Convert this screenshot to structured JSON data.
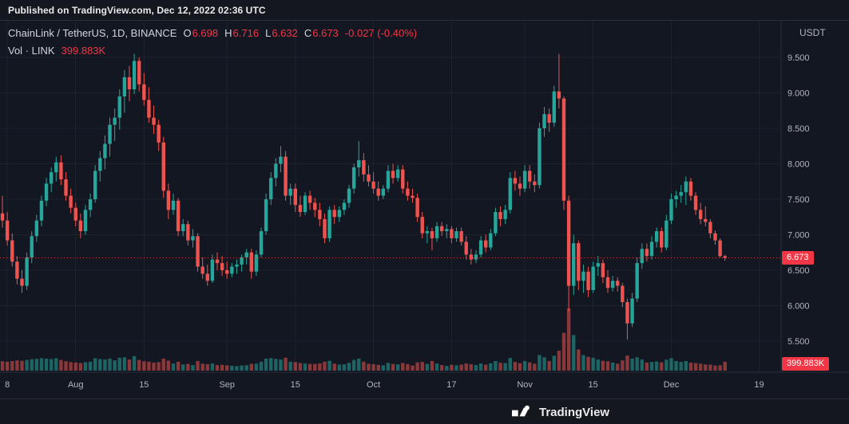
{
  "published": {
    "text": "Published on TradingView.com, Dec 12, 2022 02:36 UTC"
  },
  "legend": {
    "symbol": "ChainLink / TetherUS, 1D, BINANCE",
    "o_label": "O",
    "o_value": "6.698",
    "h_label": "H",
    "h_value": "6.716",
    "l_label": "L",
    "l_value": "6.632",
    "c_label": "C",
    "c_value": "6.673",
    "change": "-0.027 (-0.40%)",
    "vol_label": "Vol · LINK",
    "vol_value": "399.883K"
  },
  "price_axis": {
    "unit": "USDT",
    "last_price": "6.673",
    "volume_label": "399.883K"
  },
  "footer": {
    "brand": "TradingView"
  },
  "colors": {
    "bg": "#131722",
    "up": "#26a69a",
    "down": "#ef5350",
    "vol_up": "rgba(38,166,154,0.55)",
    "vol_down": "rgba(239,83,80,0.55)",
    "grid": "#1e222d",
    "border": "#2a2e39",
    "axis_text": "#b2b5be",
    "badge": "#f23645",
    "text": "#d1d4dc"
  },
  "chart_data": {
    "type": "candlestick+volume",
    "title": "ChainLink / TetherUS, 1D, BINANCE",
    "interval": "1D",
    "quote_unit": "USDT",
    "last": {
      "open": 6.698,
      "high": 6.716,
      "low": 6.632,
      "close": 6.673,
      "change": -0.027,
      "change_pct": -0.4,
      "volume": "399.883K"
    },
    "y_axis": {
      "ticks": [
        5.5,
        6.0,
        6.5,
        7.0,
        7.5,
        8.0,
        8.5,
        9.0,
        9.5
      ],
      "tick_labels": [
        "5.500",
        "6.000",
        "6.500",
        "7.000",
        "7.500",
        "8.000",
        "8.500",
        "9.000",
        "9.500"
      ]
    },
    "x_ticks": [
      {
        "i": 1,
        "label": "8"
      },
      {
        "i": 15,
        "label": "Aug"
      },
      {
        "i": 29,
        "label": "15"
      },
      {
        "i": 46,
        "label": "Sep"
      },
      {
        "i": 60,
        "label": "15"
      },
      {
        "i": 76,
        "label": "Oct"
      },
      {
        "i": 92,
        "label": "17"
      },
      {
        "i": 107,
        "label": "Nov"
      },
      {
        "i": 121,
        "label": "15"
      },
      {
        "i": 137,
        "label": "Dec"
      },
      {
        "i": 155,
        "label": "19"
      }
    ],
    "slots": 160,
    "candles": [
      [
        7.3,
        7.55,
        7.1,
        7.2,
        420
      ],
      [
        7.2,
        7.32,
        6.85,
        6.92,
        400
      ],
      [
        6.92,
        7.02,
        6.55,
        6.62,
        430
      ],
      [
        6.62,
        6.7,
        6.3,
        6.38,
        460
      ],
      [
        6.38,
        6.5,
        6.18,
        6.28,
        440
      ],
      [
        6.28,
        6.75,
        6.22,
        6.68,
        480
      ],
      [
        6.68,
        7.05,
        6.6,
        6.98,
        510
      ],
      [
        6.98,
        7.28,
        6.9,
        7.2,
        530
      ],
      [
        7.2,
        7.55,
        7.12,
        7.48,
        560
      ],
      [
        7.48,
        7.8,
        7.4,
        7.72,
        540
      ],
      [
        7.72,
        7.95,
        7.6,
        7.88,
        520
      ],
      [
        7.88,
        8.1,
        7.75,
        8.02,
        560
      ],
      [
        8.02,
        8.12,
        7.7,
        7.78,
        480
      ],
      [
        7.78,
        7.88,
        7.48,
        7.55,
        420
      ],
      [
        7.55,
        7.65,
        7.3,
        7.38,
        380
      ],
      [
        7.38,
        7.45,
        7.12,
        7.2,
        360
      ],
      [
        7.2,
        7.3,
        6.95,
        7.05,
        340
      ],
      [
        7.05,
        7.42,
        7.0,
        7.35,
        380
      ],
      [
        7.35,
        7.58,
        7.25,
        7.5,
        400
      ],
      [
        7.5,
        7.98,
        7.45,
        7.9,
        560
      ],
      [
        7.9,
        8.18,
        7.75,
        8.08,
        520
      ],
      [
        8.08,
        8.4,
        7.92,
        8.28,
        500
      ],
      [
        8.28,
        8.65,
        8.1,
        8.55,
        540
      ],
      [
        8.55,
        8.78,
        8.32,
        8.65,
        460
      ],
      [
        8.65,
        9.05,
        8.48,
        8.95,
        580
      ],
      [
        8.95,
        9.32,
        8.72,
        9.22,
        600
      ],
      [
        9.22,
        9.38,
        8.88,
        9.05,
        500
      ],
      [
        9.05,
        9.55,
        8.98,
        9.45,
        650
      ],
      [
        9.45,
        9.5,
        9.02,
        9.12,
        480
      ],
      [
        9.12,
        9.28,
        8.82,
        8.9,
        420
      ],
      [
        8.9,
        9.08,
        8.58,
        8.65,
        400
      ],
      [
        8.65,
        8.82,
        8.42,
        8.55,
        360
      ],
      [
        8.55,
        8.62,
        8.18,
        8.3,
        380
      ],
      [
        8.3,
        8.38,
        7.52,
        7.62,
        540
      ],
      [
        7.62,
        7.72,
        7.22,
        7.35,
        450
      ],
      [
        7.35,
        7.58,
        7.28,
        7.48,
        320
      ],
      [
        7.48,
        7.52,
        6.98,
        7.05,
        400
      ],
      [
        7.05,
        7.22,
        6.98,
        7.15,
        280
      ],
      [
        7.15,
        7.2,
        6.85,
        6.92,
        300
      ],
      [
        6.92,
        7.08,
        6.82,
        6.98,
        250
      ],
      [
        6.98,
        7.02,
        6.48,
        6.55,
        430
      ],
      [
        6.55,
        6.68,
        6.38,
        6.45,
        310
      ],
      [
        6.45,
        6.58,
        6.28,
        6.35,
        290
      ],
      [
        6.35,
        6.72,
        6.32,
        6.65,
        320
      ],
      [
        6.65,
        6.75,
        6.5,
        6.6,
        250
      ],
      [
        6.6,
        6.7,
        6.42,
        6.5,
        260
      ],
      [
        6.5,
        6.62,
        6.38,
        6.45,
        240
      ],
      [
        6.45,
        6.6,
        6.4,
        6.55,
        220
      ],
      [
        6.55,
        6.65,
        6.45,
        6.58,
        200
      ],
      [
        6.58,
        6.72,
        6.48,
        6.68,
        230
      ],
      [
        6.68,
        6.8,
        6.58,
        6.75,
        240
      ],
      [
        6.75,
        6.8,
        6.38,
        6.48,
        300
      ],
      [
        6.48,
        6.78,
        6.42,
        6.72,
        310
      ],
      [
        6.72,
        7.1,
        6.68,
        7.05,
        400
      ],
      [
        7.05,
        7.58,
        7.0,
        7.5,
        540
      ],
      [
        7.5,
        7.88,
        7.42,
        7.8,
        560
      ],
      [
        7.8,
        8.08,
        7.68,
        8.0,
        530
      ],
      [
        8.0,
        8.25,
        7.88,
        8.1,
        500
      ],
      [
        8.1,
        8.18,
        7.48,
        7.55,
        580
      ],
      [
        7.55,
        7.72,
        7.42,
        7.65,
        400
      ],
      [
        7.65,
        7.72,
        7.32,
        7.42,
        380
      ],
      [
        7.42,
        7.55,
        7.25,
        7.32,
        340
      ],
      [
        7.32,
        7.6,
        7.28,
        7.55,
        320
      ],
      [
        7.55,
        7.62,
        7.35,
        7.45,
        300
      ],
      [
        7.45,
        7.52,
        7.25,
        7.35,
        300
      ],
      [
        7.35,
        7.45,
        7.12,
        7.22,
        320
      ],
      [
        7.22,
        7.3,
        6.88,
        6.95,
        400
      ],
      [
        6.95,
        7.4,
        6.9,
        7.35,
        440
      ],
      [
        7.35,
        7.42,
        7.15,
        7.25,
        310
      ],
      [
        7.25,
        7.4,
        7.18,
        7.35,
        270
      ],
      [
        7.35,
        7.5,
        7.28,
        7.45,
        280
      ],
      [
        7.45,
        7.7,
        7.38,
        7.65,
        350
      ],
      [
        7.65,
        8.0,
        7.58,
        7.95,
        480
      ],
      [
        7.95,
        8.32,
        7.82,
        8.05,
        540
      ],
      [
        8.05,
        8.15,
        7.75,
        7.85,
        400
      ],
      [
        7.85,
        7.98,
        7.68,
        7.75,
        310
      ],
      [
        7.75,
        7.88,
        7.58,
        7.65,
        290
      ],
      [
        7.65,
        7.75,
        7.48,
        7.55,
        260
      ],
      [
        7.55,
        7.7,
        7.5,
        7.65,
        240
      ],
      [
        7.65,
        7.98,
        7.6,
        7.9,
        350
      ],
      [
        7.9,
        8.0,
        7.72,
        7.8,
        300
      ],
      [
        7.8,
        7.98,
        7.75,
        7.92,
        280
      ],
      [
        7.92,
        7.98,
        7.58,
        7.65,
        340
      ],
      [
        7.65,
        7.75,
        7.48,
        7.55,
        290
      ],
      [
        7.55,
        7.65,
        7.45,
        7.52,
        230
      ],
      [
        7.52,
        7.58,
        7.18,
        7.25,
        370
      ],
      [
        7.25,
        7.32,
        6.95,
        7.02,
        390
      ],
      [
        7.02,
        7.12,
        6.88,
        7.05,
        300
      ],
      [
        7.05,
        7.1,
        6.78,
        6.95,
        430
      ],
      [
        6.95,
        7.18,
        6.9,
        7.12,
        320
      ],
      [
        7.12,
        7.18,
        6.98,
        7.05,
        250
      ],
      [
        7.05,
        7.15,
        6.95,
        7.08,
        210
      ],
      [
        7.08,
        7.12,
        6.88,
        6.95,
        260
      ],
      [
        6.95,
        7.1,
        6.9,
        7.05,
        240
      ],
      [
        7.05,
        7.1,
        6.85,
        6.9,
        270
      ],
      [
        6.9,
        6.98,
        6.65,
        6.72,
        320
      ],
      [
        6.72,
        6.8,
        6.58,
        6.65,
        290
      ],
      [
        6.65,
        6.78,
        6.6,
        6.72,
        250
      ],
      [
        6.72,
        6.98,
        6.68,
        6.92,
        320
      ],
      [
        6.92,
        7.0,
        6.75,
        6.82,
        270
      ],
      [
        6.82,
        7.08,
        6.78,
        7.02,
        330
      ],
      [
        7.02,
        7.38,
        6.98,
        7.32,
        430
      ],
      [
        7.32,
        7.4,
        7.12,
        7.22,
        350
      ],
      [
        7.22,
        7.42,
        7.15,
        7.35,
        340
      ],
      [
        7.35,
        7.88,
        7.3,
        7.8,
        570
      ],
      [
        7.8,
        7.9,
        7.62,
        7.72,
        390
      ],
      [
        7.72,
        7.82,
        7.55,
        7.65,
        330
      ],
      [
        7.65,
        7.98,
        7.6,
        7.9,
        430
      ],
      [
        7.9,
        7.98,
        7.65,
        7.75,
        370
      ],
      [
        7.75,
        7.85,
        7.6,
        7.7,
        310
      ],
      [
        7.7,
        8.58,
        7.65,
        8.5,
        700
      ],
      [
        8.5,
        8.8,
        8.38,
        8.7,
        600
      ],
      [
        8.7,
        8.78,
        8.45,
        8.58,
        430
      ],
      [
        8.58,
        9.1,
        8.52,
        9.02,
        670
      ],
      [
        9.02,
        9.55,
        8.78,
        8.92,
        900
      ],
      [
        8.92,
        8.95,
        7.35,
        7.48,
        1700
      ],
      [
        7.48,
        7.55,
        5.92,
        6.28,
        2800
      ],
      [
        6.28,
        7.0,
        6.15,
        6.88,
        1600
      ],
      [
        6.88,
        6.92,
        6.22,
        6.35,
        950
      ],
      [
        6.35,
        6.58,
        6.18,
        6.48,
        700
      ],
      [
        6.48,
        6.55,
        6.12,
        6.22,
        620
      ],
      [
        6.22,
        6.62,
        6.18,
        6.55,
        580
      ],
      [
        6.55,
        6.7,
        6.42,
        6.6,
        500
      ],
      [
        6.6,
        6.65,
        6.32,
        6.4,
        440
      ],
      [
        6.4,
        6.5,
        6.18,
        6.25,
        420
      ],
      [
        6.25,
        6.42,
        6.2,
        6.35,
        360
      ],
      [
        6.35,
        6.4,
        6.2,
        6.28,
        310
      ],
      [
        6.28,
        6.32,
        5.98,
        6.05,
        460
      ],
      [
        6.05,
        6.1,
        5.52,
        5.75,
        680
      ],
      [
        5.75,
        6.18,
        5.7,
        6.1,
        540
      ],
      [
        6.1,
        6.68,
        6.05,
        6.6,
        600
      ],
      [
        6.6,
        6.88,
        6.52,
        6.8,
        500
      ],
      [
        6.8,
        6.88,
        6.62,
        6.7,
        360
      ],
      [
        6.7,
        6.98,
        6.65,
        6.9,
        390
      ],
      [
        6.9,
        7.1,
        6.82,
        7.05,
        410
      ],
      [
        7.05,
        7.1,
        6.75,
        6.82,
        370
      ],
      [
        6.82,
        7.28,
        6.78,
        7.2,
        490
      ],
      [
        7.2,
        7.58,
        7.15,
        7.5,
        560
      ],
      [
        7.5,
        7.62,
        7.38,
        7.55,
        430
      ],
      [
        7.55,
        7.7,
        7.45,
        7.6,
        390
      ],
      [
        7.6,
        7.82,
        7.42,
        7.75,
        430
      ],
      [
        7.75,
        7.8,
        7.48,
        7.55,
        360
      ],
      [
        7.55,
        7.6,
        7.28,
        7.35,
        340
      ],
      [
        7.35,
        7.45,
        7.15,
        7.22,
        310
      ],
      [
        7.22,
        7.4,
        7.12,
        7.18,
        280
      ],
      [
        7.18,
        7.22,
        6.95,
        7.02,
        270
      ],
      [
        7.02,
        7.06,
        6.86,
        6.92,
        230
      ],
      [
        6.92,
        6.95,
        6.68,
        6.698,
        240
      ],
      [
        6.698,
        6.716,
        6.632,
        6.673,
        399.883
      ]
    ]
  }
}
